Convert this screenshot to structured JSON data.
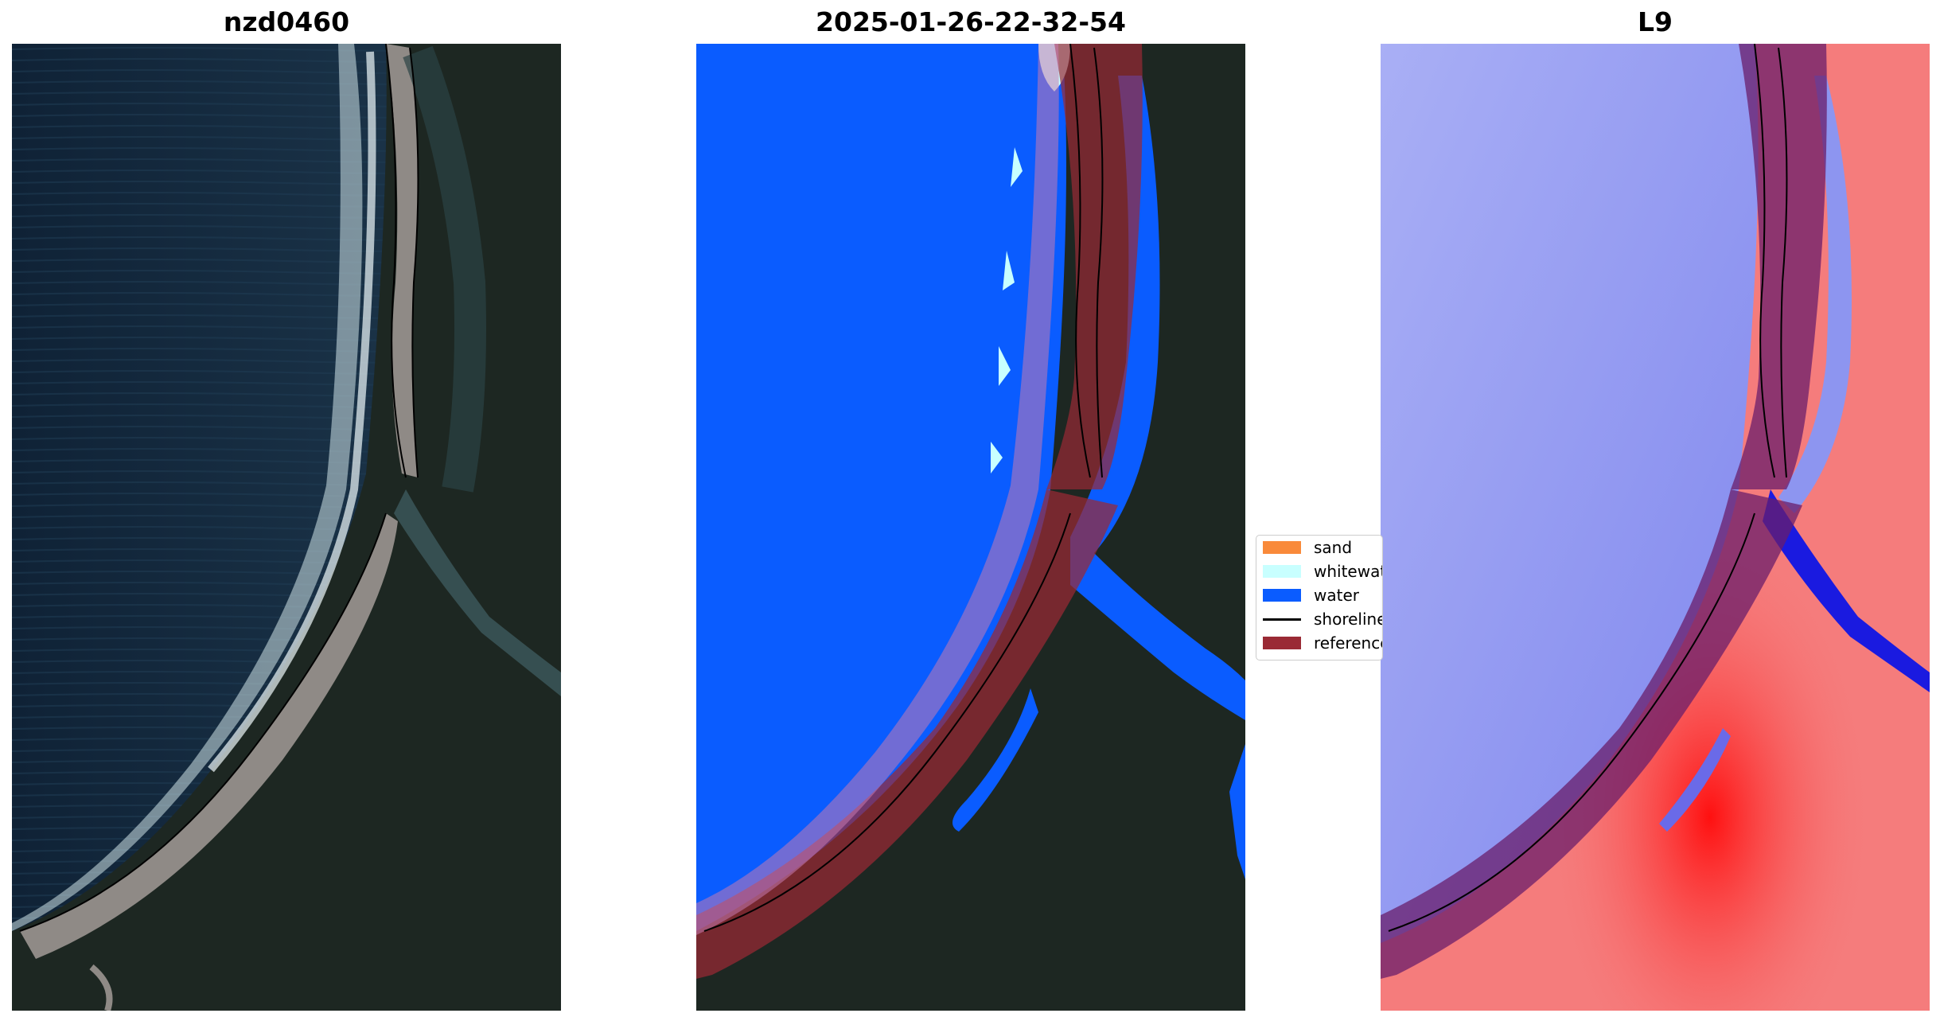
{
  "panels": [
    {
      "title": "nzd0460"
    },
    {
      "title": "2025-01-26-22-32-54"
    },
    {
      "title": "L9"
    }
  ],
  "legend": {
    "items": [
      {
        "label": "sand",
        "color": "#f98a3a"
      },
      {
        "label": "whitewater",
        "color": "#c8ffff"
      },
      {
        "label": "water",
        "color": "#0a5cff"
      },
      {
        "label": "shoreline",
        "color": "#000000"
      },
      {
        "label": "reference",
        "color": "#9a2a35"
      }
    ]
  },
  "colors": {
    "ocean_rgb": "#13263a",
    "land_rgb": "#1d2722",
    "beach_rgb": "#8f8a86",
    "surf": "#e8f4f6",
    "index_water": "#8d95f0",
    "index_land": "#f57c7c",
    "index_strong_red": "#ff1010",
    "index_strong_blue": "#1a1ae0"
  }
}
